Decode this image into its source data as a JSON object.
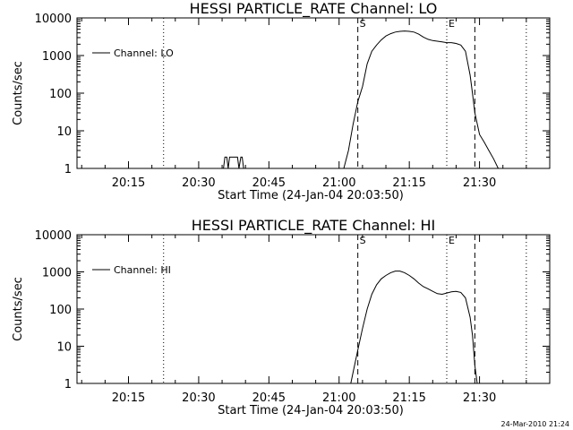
{
  "chart_data": [
    {
      "type": "line",
      "title": "HESSI PARTICLE_RATE Channel: LO",
      "xlabel": "Start Time (24-Jan-04 20:03:50)",
      "ylabel": "Counts/sec",
      "yscale": "log",
      "xlim": [
        "20:04",
        "21:45"
      ],
      "ylim": [
        1,
        10000
      ],
      "xticks": [
        "20:15",
        "20:30",
        "20:45",
        "21:00",
        "21:15",
        "21:30"
      ],
      "yticks": [
        "1",
        "10",
        "100",
        "1000",
        "10000"
      ],
      "grid": false,
      "legend": {
        "position": "top-left",
        "entries": [
          "Channel: LO"
        ]
      },
      "markers": [
        {
          "time": "20:22.5",
          "style": "dotted",
          "label": ""
        },
        {
          "time": "21:04",
          "style": "dashed",
          "label": "S"
        },
        {
          "time": "21:23",
          "style": "dotted",
          "label": "E"
        },
        {
          "time": "21:29",
          "style": "dashed",
          "label": ""
        },
        {
          "time": "21:40",
          "style": "dotted",
          "label": ""
        }
      ],
      "series": [
        {
          "name": "Channel: LO",
          "segments": [
            {
              "x": [
                "20:35",
                "20:35.3",
                "20:35.6",
                "20:36",
                "20:36.3",
                "20:36.6",
                "20:37",
                "20:37.3",
                "20:37.6",
                "20:38",
                "20:38.3",
                "20:38.6",
                "20:39",
                "20:39.3",
                "20:39.6",
                "20:40"
              ],
              "y": [
                1,
                1,
                2,
                2,
                1,
                2,
                2,
                2,
                2,
                2,
                2,
                1,
                2,
                2,
                1,
                1
              ]
            },
            {
              "x": [
                "21:01",
                "21:02",
                "21:03",
                "21:04",
                "21:05",
                "21:06",
                "21:07",
                "21:08",
                "21:09",
                "21:10",
                "21:11",
                "21:12",
                "21:13",
                "21:14",
                "21:15",
                "21:16",
                "21:17",
                "21:18",
                "21:19",
                "21:20",
                "21:21",
                "21:22",
                "21:23",
                "21:24",
                "21:25",
                "21:26",
                "21:27",
                "21:28",
                "21:28.5",
                "21:29",
                "21:30",
                "21:31",
                "21:32",
                "21:33",
                "21:34"
              ],
              "y": [
                1,
                3,
                15,
                60,
                150,
                600,
                1300,
                1900,
                2600,
                3300,
                3800,
                4200,
                4400,
                4500,
                4400,
                4200,
                3700,
                3100,
                2700,
                2500,
                2400,
                2300,
                2200,
                2200,
                2100,
                1900,
                1300,
                300,
                100,
                30,
                8,
                5,
                3,
                1.8,
                1
              ]
            }
          ]
        }
      ]
    },
    {
      "type": "line",
      "title": "HESSI PARTICLE_RATE Channel: HI",
      "xlabel": "Start Time (24-Jan-04 20:03:50)",
      "ylabel": "Counts/sec",
      "yscale": "log",
      "xlim": [
        "20:04",
        "21:45"
      ],
      "ylim": [
        1,
        10000
      ],
      "xticks": [
        "20:15",
        "20:30",
        "20:45",
        "21:00",
        "21:15",
        "21:30"
      ],
      "yticks": [
        "1",
        "10",
        "100",
        "1000",
        "10000"
      ],
      "grid": false,
      "legend": {
        "position": "top-left",
        "entries": [
          "Channel: HI"
        ]
      },
      "markers": [
        {
          "time": "20:22.5",
          "style": "dotted",
          "label": ""
        },
        {
          "time": "21:04",
          "style": "dashed",
          "label": "S"
        },
        {
          "time": "21:23",
          "style": "dotted",
          "label": "E"
        },
        {
          "time": "21:29",
          "style": "dashed",
          "label": ""
        },
        {
          "time": "21:40",
          "style": "dotted",
          "label": ""
        }
      ],
      "series": [
        {
          "name": "Channel: HI",
          "segments": [
            {
              "x": [
                "21:02.5",
                "21:03",
                "21:04",
                "21:05",
                "21:06",
                "21:07",
                "21:08",
                "21:09",
                "21:10",
                "21:11",
                "21:12",
                "21:13",
                "21:14",
                "21:15",
                "21:16",
                "21:17",
                "21:18",
                "21:19",
                "21:20",
                "21:21",
                "21:22",
                "21:23",
                "21:24",
                "21:25",
                "21:26",
                "21:27",
                "21:28",
                "21:28.5",
                "21:29",
                "21:29.5"
              ],
              "y": [
                1,
                2,
                8,
                30,
                100,
                250,
                450,
                650,
                800,
                950,
                1050,
                1050,
                950,
                800,
                650,
                500,
                400,
                350,
                300,
                260,
                250,
                270,
                290,
                300,
                280,
                200,
                60,
                20,
                3,
                1
              ]
            }
          ]
        }
      ]
    }
  ],
  "footer": {
    "timestamp": "24-Mar-2010 21:24"
  }
}
